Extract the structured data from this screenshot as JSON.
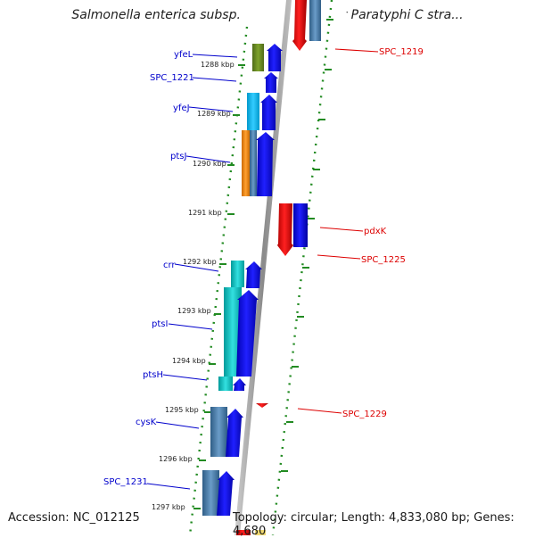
{
  "title": "Salmonella enterica subsp. enterica serovar Paratyphi C stra...",
  "footer": {
    "accession": "Accession: NC_012125",
    "summary": "Topology: circular; Length: 4,833,080 bp; Genes: 4,680"
  },
  "colors": {
    "left_label": "#0000cc",
    "right_label": "#dd0000",
    "tick_dots": "#228b22",
    "backbone": "#8a8a8a"
  },
  "kbp_ticks": [
    "1288 kbp",
    "1289 kbp",
    "1290 kbp",
    "1291 kbp",
    "1292 kbp",
    "1293 kbp",
    "1294 kbp",
    "1295 kbp",
    "1296 kbp",
    "1297 kbp"
  ],
  "left_labels": [
    "yfeL",
    "SPC_1221",
    "yfeJ",
    "ptsJ",
    "crr",
    "ptsI",
    "ptsH",
    "cysK",
    "SPC_1231"
  ],
  "right_labels": [
    "SPC_1219",
    "pdxK",
    "SPC_1225",
    "SPC_1229"
  ],
  "gene_colors": {
    "blue_strand": "#0000e6",
    "red_strand": "#e60000",
    "olive_category": "#6b8e23",
    "skyblue_category": "#00bfff",
    "orange_category": "#ff8c00",
    "steelblue_category": "#4682b4",
    "turquoise_category": "#00c8c8"
  }
}
